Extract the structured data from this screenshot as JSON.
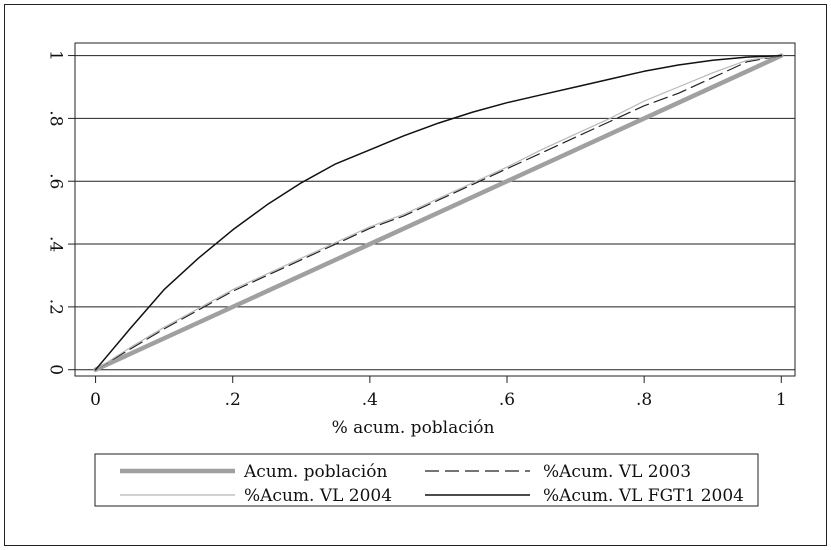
{
  "chart_data": {
    "type": "line",
    "xlabel": "% acum. población",
    "ylabel": "",
    "xlim": [
      -0.03,
      1.02
    ],
    "ylim": [
      -0.02,
      1.04
    ],
    "x_ticks": [
      {
        "value": 0,
        "label": "0"
      },
      {
        "value": 0.2,
        "label": ".2"
      },
      {
        "value": 0.4,
        "label": ".4"
      },
      {
        "value": 0.6,
        "label": ".6"
      },
      {
        "value": 0.8,
        "label": ".8"
      },
      {
        "value": 1,
        "label": "1"
      }
    ],
    "y_ticks": [
      {
        "value": 0,
        "label": "0"
      },
      {
        "value": 0.2,
        "label": ".2"
      },
      {
        "value": 0.4,
        "label": ".4"
      },
      {
        "value": 0.6,
        "label": ".6"
      },
      {
        "value": 0.8,
        "label": ".8"
      },
      {
        "value": 1,
        "label": "1"
      }
    ],
    "grid": true,
    "legend_position": "bottom",
    "series": [
      {
        "name": "Acum. población",
        "color": "#a0a0a0",
        "style": "solid-thick",
        "x": [
          0,
          1
        ],
        "y": [
          0,
          1
        ]
      },
      {
        "name": "%Acum. VL 2003",
        "color": "#222222",
        "style": "dashed",
        "x": [
          0,
          0.05,
          0.1,
          0.15,
          0.2,
          0.25,
          0.3,
          0.35,
          0.4,
          0.45,
          0.5,
          0.55,
          0.6,
          0.65,
          0.7,
          0.75,
          0.8,
          0.85,
          0.9,
          0.95,
          1
        ],
        "y": [
          0,
          0.065,
          0.13,
          0.19,
          0.25,
          0.3,
          0.35,
          0.4,
          0.45,
          0.49,
          0.54,
          0.59,
          0.64,
          0.69,
          0.74,
          0.79,
          0.84,
          0.88,
          0.93,
          0.98,
          1
        ]
      },
      {
        "name": "%Acum. VL 2004",
        "color": "#b8b8b8",
        "style": "solid-thin",
        "x": [
          0,
          0.05,
          0.1,
          0.15,
          0.2,
          0.25,
          0.3,
          0.35,
          0.4,
          0.45,
          0.5,
          0.55,
          0.6,
          0.65,
          0.7,
          0.75,
          0.8,
          0.85,
          0.9,
          0.95,
          1
        ],
        "y": [
          0,
          0.07,
          0.135,
          0.195,
          0.255,
          0.305,
          0.355,
          0.405,
          0.455,
          0.495,
          0.545,
          0.595,
          0.645,
          0.7,
          0.75,
          0.8,
          0.855,
          0.9,
          0.945,
          0.985,
          1
        ]
      },
      {
        "name": "%Acum. VL FGT1 2004",
        "color": "#111111",
        "style": "solid",
        "x": [
          0,
          0.05,
          0.1,
          0.15,
          0.2,
          0.25,
          0.3,
          0.35,
          0.4,
          0.45,
          0.5,
          0.55,
          0.6,
          0.65,
          0.7,
          0.75,
          0.8,
          0.85,
          0.9,
          0.95,
          1
        ],
        "y": [
          0,
          0.13,
          0.255,
          0.355,
          0.445,
          0.525,
          0.595,
          0.655,
          0.7,
          0.745,
          0.785,
          0.82,
          0.85,
          0.875,
          0.9,
          0.925,
          0.95,
          0.97,
          0.985,
          0.995,
          1
        ]
      }
    ]
  }
}
